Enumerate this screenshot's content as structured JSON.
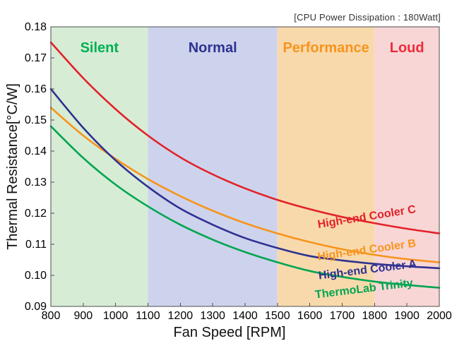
{
  "annotation": "[CPU Power Dissipation : 180Watt]",
  "chart_data": {
    "type": "line",
    "title": "",
    "xlabel": "Fan Speed [RPM]",
    "ylabel": "Thermal Resistance[°C/W]",
    "xlim": [
      800,
      2000
    ],
    "xstep": 100,
    "ylim": [
      0.09,
      0.18
    ],
    "ystep": 0.01,
    "grid": false,
    "legend_position": "labels-on-curves",
    "axis_color": "#4d4d4d",
    "tick_label_color": "#000000",
    "zones": [
      {
        "label": "Silent",
        "range": [
          800,
          1100
        ],
        "band_color": "#d7ecd5",
        "text_color": "#00b052"
      },
      {
        "label": "Normal",
        "range": [
          1100,
          1500
        ],
        "band_color": "#cdd3ec",
        "text_color": "#2e3192"
      },
      {
        "label": "Performance",
        "range": [
          1500,
          1800
        ],
        "band_color": "#f8d9ac",
        "text_color": "#f7941d"
      },
      {
        "label": "Loud",
        "range": [
          1800,
          2000
        ],
        "band_color": "#f8d6d6",
        "text_color": "#ee2b3b"
      }
    ],
    "x": [
      800,
      900,
      1000,
      1100,
      1200,
      1300,
      1400,
      1500,
      1600,
      1700,
      1800,
      1900,
      2000
    ],
    "series": [
      {
        "name": "High-end Cooler C",
        "color": "#e32128",
        "values": [
          0.175,
          0.1635,
          0.1535,
          0.145,
          0.138,
          0.1325,
          0.128,
          0.1243,
          0.1213,
          0.1188,
          0.1168,
          0.115,
          0.1135
        ]
      },
      {
        "name": "High-end Cooler B",
        "color": "#f7941d",
        "values": [
          0.154,
          0.145,
          0.1375,
          0.131,
          0.1255,
          0.1208,
          0.1168,
          0.1135,
          0.1107,
          0.1084,
          0.1066,
          0.1052,
          0.1042
        ]
      },
      {
        "name": "High-end Cooler A",
        "color": "#2e3192",
        "values": [
          0.16,
          0.1475,
          0.137,
          0.1285,
          0.1215,
          0.1163,
          0.112,
          0.1088,
          0.1062,
          0.1048,
          0.1037,
          0.1029,
          0.1023
        ]
      },
      {
        "name": "ThermoLab Trinity",
        "color": "#00a551",
        "values": [
          0.148,
          0.1378,
          0.1292,
          0.1222,
          0.1163,
          0.1115,
          0.1075,
          0.1042,
          0.1014,
          0.0995,
          0.098,
          0.0969,
          0.096
        ]
      }
    ]
  }
}
